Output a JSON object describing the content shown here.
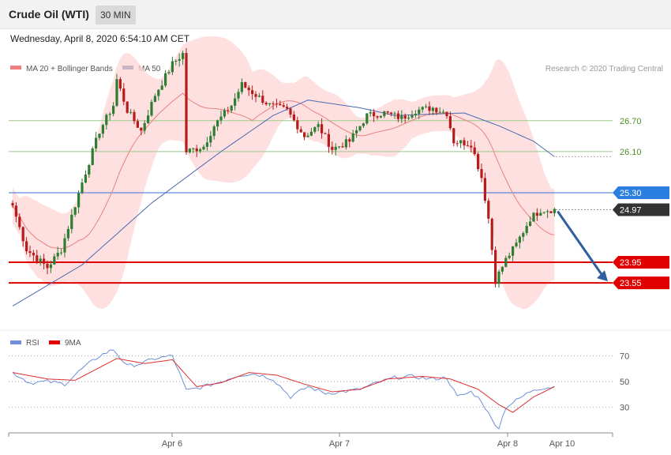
{
  "header": {
    "instrument": "Crude Oil (WTI)",
    "timeframe": "30 MIN",
    "timestamp": "Wednesday, April 8, 2020 6:54:10 AM CET"
  },
  "legend": {
    "bollinger": "MA 20 + Bollinger Bands",
    "ma50": "MA 50",
    "credit": "Research © 2020 Trading Central",
    "rsi": "RSI",
    "rsi_ma": "9MA"
  },
  "colors": {
    "up_candle": "#2e7d32",
    "down_candle": "#b71c1c",
    "band_fill": "#ffd6d6",
    "ma20": "#e88080",
    "ma50": "#4a6ab0",
    "resistance": "#9bc98b",
    "pivot": "#3a6fd8",
    "support": "#e00000",
    "last_price": "#333333",
    "arrow": "#2f5f9e",
    "rsi": "#6f8fd8",
    "rsi_ma": "#e03030"
  },
  "chart_data": [
    {
      "type": "candlestick",
      "title": "Crude Oil (WTI)",
      "timeframe": "30 MIN",
      "ylim": [
        22.6,
        28.2
      ],
      "x_ticks": [
        "Apr 6",
        "Apr 7",
        "Apr 8",
        "Apr 10"
      ],
      "levels": [
        {
          "label": "26.70",
          "value": 26.7,
          "kind": "resistance"
        },
        {
          "label": "26.10",
          "value": 26.1,
          "kind": "resistance"
        },
        {
          "label": "25.30",
          "value": 25.3,
          "kind": "pivot"
        },
        {
          "label": "24.97",
          "value": 24.97,
          "kind": "last"
        },
        {
          "label": "23.95",
          "value": 23.95,
          "kind": "support"
        },
        {
          "label": "23.55",
          "value": 23.55,
          "kind": "support"
        }
      ],
      "forecast_arrow": {
        "from": 24.97,
        "to": 23.55
      },
      "close_path": [
        {
          "i": 0,
          "v": 25.05
        },
        {
          "i": 4,
          "v": 24.2
        },
        {
          "i": 10,
          "v": 23.85
        },
        {
          "i": 14,
          "v": 24.2
        },
        {
          "i": 20,
          "v": 25.5
        },
        {
          "i": 25,
          "v": 26.5
        },
        {
          "i": 29,
          "v": 27.0
        },
        {
          "i": 30,
          "v": 27.5
        },
        {
          "i": 33,
          "v": 26.9
        },
        {
          "i": 37,
          "v": 26.5
        },
        {
          "i": 41,
          "v": 27.2
        },
        {
          "i": 46,
          "v": 27.8
        },
        {
          "i": 49,
          "v": 28.0
        },
        {
          "i": 50,
          "v": 26.1
        },
        {
          "i": 55,
          "v": 26.2
        },
        {
          "i": 58,
          "v": 26.6
        },
        {
          "i": 63,
          "v": 27.0
        },
        {
          "i": 66,
          "v": 27.4
        },
        {
          "i": 70,
          "v": 27.2
        },
        {
          "i": 74,
          "v": 27.0
        },
        {
          "i": 79,
          "v": 26.9
        },
        {
          "i": 84,
          "v": 26.4
        },
        {
          "i": 88,
          "v": 26.6
        },
        {
          "i": 92,
          "v": 26.15
        },
        {
          "i": 97,
          "v": 26.3
        },
        {
          "i": 102,
          "v": 26.8
        },
        {
          "i": 107,
          "v": 26.85
        },
        {
          "i": 112,
          "v": 26.75
        },
        {
          "i": 116,
          "v": 26.9
        },
        {
          "i": 121,
          "v": 26.95
        },
        {
          "i": 125,
          "v": 26.85
        },
        {
          "i": 127,
          "v": 26.3
        },
        {
          "i": 132,
          "v": 26.25
        },
        {
          "i": 135,
          "v": 25.6
        },
        {
          "i": 137,
          "v": 24.8
        },
        {
          "i": 139,
          "v": 23.6
        },
        {
          "i": 142,
          "v": 24.0
        },
        {
          "i": 145,
          "v": 24.3
        },
        {
          "i": 149,
          "v": 24.8
        },
        {
          "i": 152,
          "v": 24.97
        },
        {
          "i": 156,
          "v": 24.97
        }
      ],
      "ma50": [
        {
          "i": 0,
          "v": 23.1
        },
        {
          "i": 20,
          "v": 23.9
        },
        {
          "i": 40,
          "v": 25.1
        },
        {
          "i": 60,
          "v": 26.1
        },
        {
          "i": 75,
          "v": 26.8
        },
        {
          "i": 85,
          "v": 27.1
        },
        {
          "i": 100,
          "v": 26.95
        },
        {
          "i": 110,
          "v": 26.8
        },
        {
          "i": 130,
          "v": 26.85
        },
        {
          "i": 140,
          "v": 26.6
        },
        {
          "i": 150,
          "v": 26.3
        },
        {
          "i": 156,
          "v": 26.0
        }
      ]
    },
    {
      "type": "line",
      "title": "RSI",
      "ylim": [
        10,
        90
      ],
      "y_ticks": [
        70,
        50,
        30
      ],
      "series": [
        {
          "name": "RSI",
          "values": [
            {
              "i": 0,
              "v": 57
            },
            {
              "i": 5,
              "v": 49
            },
            {
              "i": 10,
              "v": 50
            },
            {
              "i": 15,
              "v": 48
            },
            {
              "i": 20,
              "v": 60
            },
            {
              "i": 25,
              "v": 70
            },
            {
              "i": 29,
              "v": 75
            },
            {
              "i": 33,
              "v": 62
            },
            {
              "i": 37,
              "v": 64
            },
            {
              "i": 41,
              "v": 68
            },
            {
              "i": 46,
              "v": 70
            },
            {
              "i": 50,
              "v": 43
            },
            {
              "i": 55,
              "v": 46
            },
            {
              "i": 60,
              "v": 50
            },
            {
              "i": 65,
              "v": 55
            },
            {
              "i": 70,
              "v": 56
            },
            {
              "i": 75,
              "v": 52
            },
            {
              "i": 80,
              "v": 38
            },
            {
              "i": 85,
              "v": 46
            },
            {
              "i": 90,
              "v": 41
            },
            {
              "i": 95,
              "v": 42
            },
            {
              "i": 100,
              "v": 44
            },
            {
              "i": 105,
              "v": 49
            },
            {
              "i": 110,
              "v": 53
            },
            {
              "i": 115,
              "v": 54
            },
            {
              "i": 120,
              "v": 52
            },
            {
              "i": 125,
              "v": 53
            },
            {
              "i": 128,
              "v": 38
            },
            {
              "i": 132,
              "v": 42
            },
            {
              "i": 135,
              "v": 35
            },
            {
              "i": 138,
              "v": 20
            },
            {
              "i": 140,
              "v": 14
            },
            {
              "i": 142,
              "v": 30
            },
            {
              "i": 146,
              "v": 37
            },
            {
              "i": 150,
              "v": 44
            },
            {
              "i": 156,
              "v": 46
            }
          ]
        },
        {
          "name": "9MA",
          "values": [
            {
              "i": 0,
              "v": 57
            },
            {
              "i": 10,
              "v": 52
            },
            {
              "i": 18,
              "v": 51
            },
            {
              "i": 30,
              "v": 68
            },
            {
              "i": 38,
              "v": 64
            },
            {
              "i": 46,
              "v": 67
            },
            {
              "i": 53,
              "v": 46
            },
            {
              "i": 60,
              "v": 49
            },
            {
              "i": 68,
              "v": 57
            },
            {
              "i": 76,
              "v": 55
            },
            {
              "i": 84,
              "v": 48
            },
            {
              "i": 92,
              "v": 42
            },
            {
              "i": 100,
              "v": 44
            },
            {
              "i": 108,
              "v": 52
            },
            {
              "i": 118,
              "v": 54
            },
            {
              "i": 126,
              "v": 52
            },
            {
              "i": 134,
              "v": 44
            },
            {
              "i": 140,
              "v": 32
            },
            {
              "i": 144,
              "v": 26
            },
            {
              "i": 150,
              "v": 38
            },
            {
              "i": 156,
              "v": 46
            }
          ]
        }
      ]
    }
  ]
}
